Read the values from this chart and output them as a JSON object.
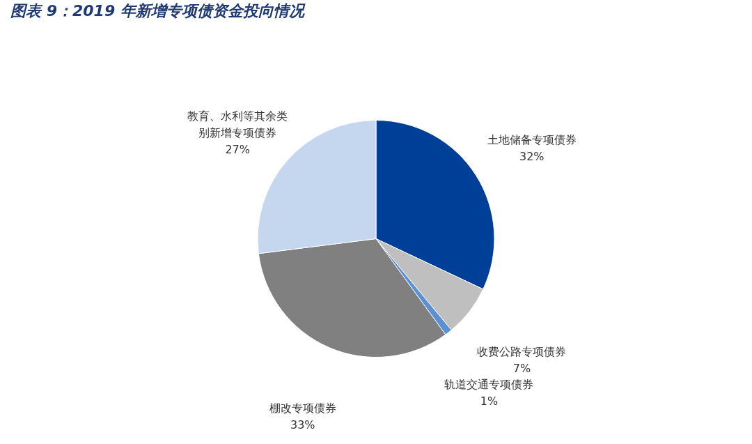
{
  "chart_data": {
    "type": "pie",
    "title": "图表 9：2019 年新增专项债资金投向情况",
    "categories": [
      "土地储备专项债券",
      "收费公路专项债券",
      "轨道交通专项债券",
      "棚改专项债券",
      "教育、水利等其余类别新增专项债券"
    ],
    "values": [
      32,
      7,
      1,
      33,
      27
    ],
    "value_labels": [
      "32%",
      "7%",
      "1%",
      "33%",
      "27%"
    ],
    "colors": [
      "#003f98",
      "#bfbfbf",
      "#5b8fd6",
      "#808080",
      "#c5d7ee"
    ],
    "legend": false
  }
}
